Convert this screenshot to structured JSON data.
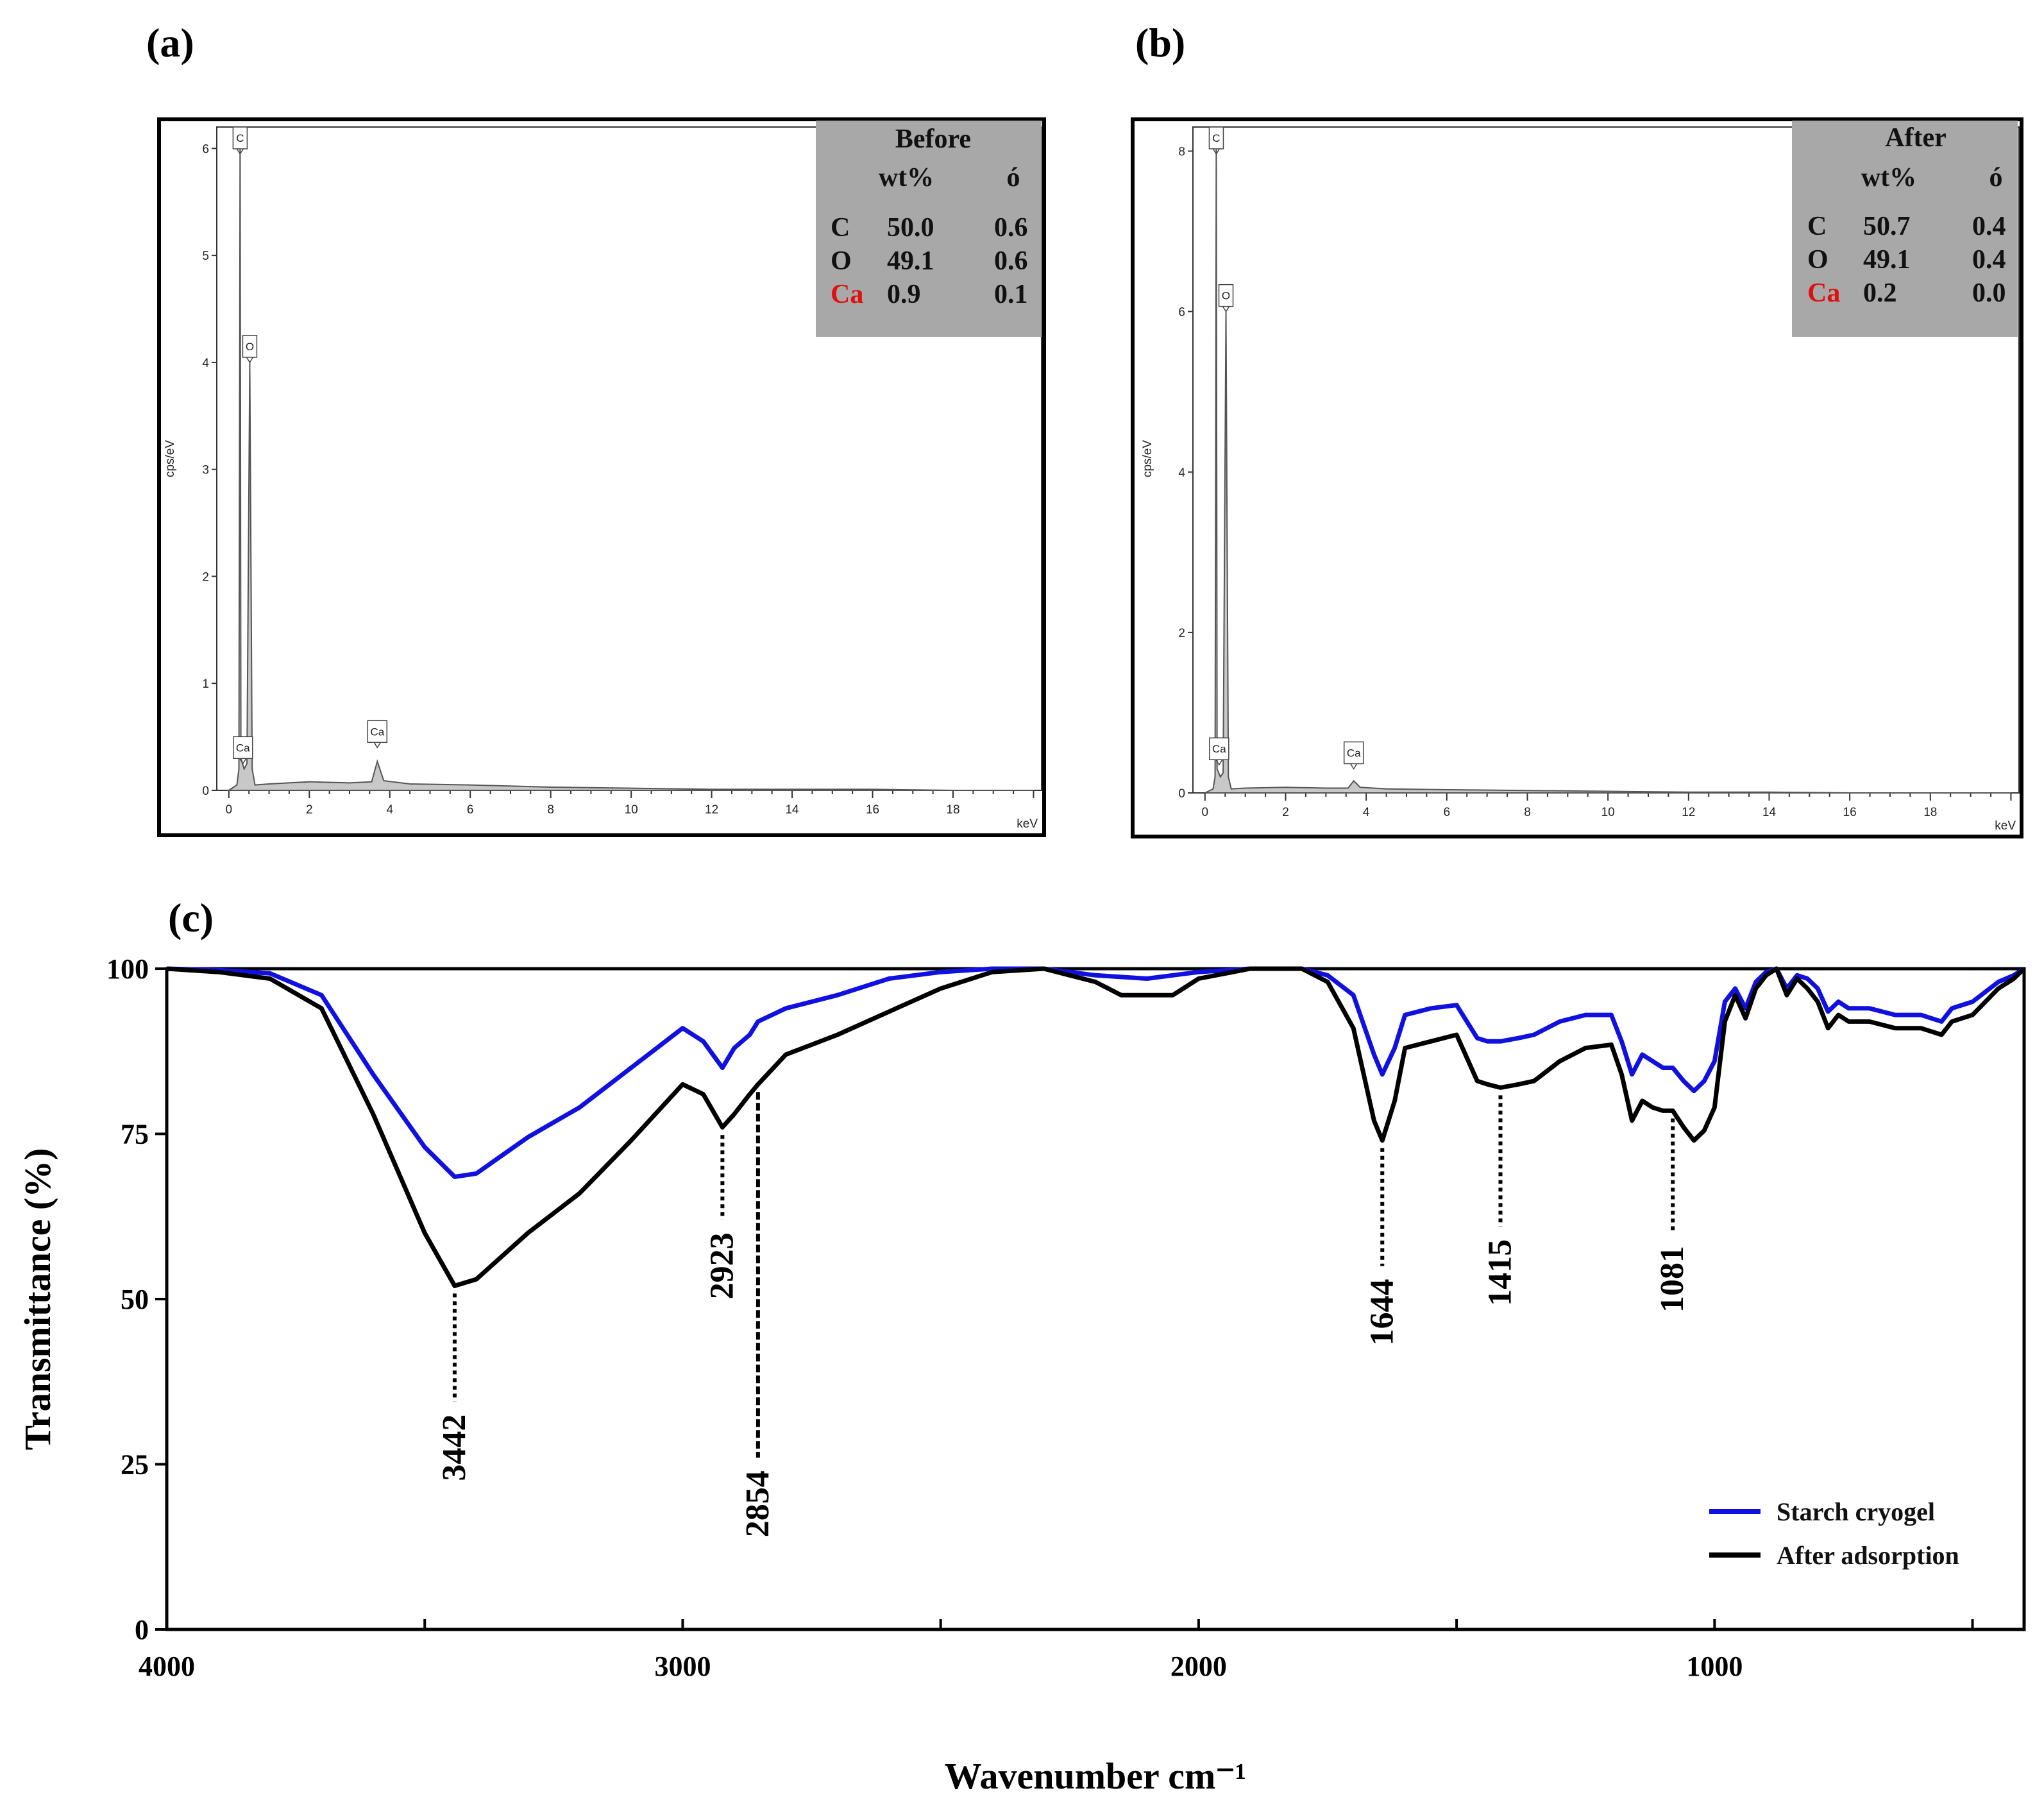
{
  "chart_data": [
    {
      "id": "a",
      "panel_label": "(a)",
      "type": "line",
      "title": "",
      "xlabel": "keV",
      "ylabel": "cps/eV",
      "xlim": [
        -0.3,
        20.2
      ],
      "ylim": [
        0,
        6.2
      ],
      "xticks": [
        0,
        2,
        4,
        6,
        8,
        10,
        12,
        14,
        16,
        18
      ],
      "yticks": [
        0,
        1,
        2,
        3,
        4,
        5,
        6
      ],
      "x_tick_labels": [
        "0",
        "2",
        "4",
        "6",
        "8",
        "10",
        "12",
        "14",
        "16",
        "18"
      ],
      "y_tick_labels": [
        "0",
        "1",
        "2",
        "3",
        "4",
        "5",
        "6"
      ],
      "spectrum": [
        [
          0,
          0
        ],
        [
          0.2,
          0.05
        ],
        [
          0.25,
          0.2
        ],
        [
          0.28,
          6.2
        ],
        [
          0.3,
          0.3
        ],
        [
          0.38,
          0.2
        ],
        [
          0.45,
          0.25
        ],
        [
          0.52,
          4.0
        ],
        [
          0.58,
          0.2
        ],
        [
          0.65,
          0.05
        ],
        [
          1.0,
          0.06
        ],
        [
          2.0,
          0.08
        ],
        [
          3.0,
          0.07
        ],
        [
          3.55,
          0.08
        ],
        [
          3.69,
          0.27
        ],
        [
          3.85,
          0.09
        ],
        [
          4.5,
          0.06
        ],
        [
          6,
          0.05
        ],
        [
          8,
          0.03
        ],
        [
          10,
          0.02
        ],
        [
          12,
          0.01
        ],
        [
          14,
          0.01
        ],
        [
          16,
          0.01
        ],
        [
          18,
          0.0
        ],
        [
          20,
          0.0
        ]
      ],
      "peaks": [
        {
          "label": "C",
          "x": 0.28,
          "y": 6.2
        },
        {
          "label": "O",
          "x": 0.52,
          "y": 4.0
        },
        {
          "label": "Ca",
          "x": 0.35,
          "y": 0.25
        },
        {
          "label": "Ca",
          "x": 3.69,
          "y": 0.4
        }
      ],
      "composition_table": {
        "title": "Before",
        "columns": [
          "wt%",
          "ó"
        ],
        "rows": [
          {
            "element": "C",
            "wt": "50.0",
            "sigma": "0.6",
            "color": "#000000"
          },
          {
            "element": "O",
            "wt": "49.1",
            "sigma": "0.6",
            "color": "#000000"
          },
          {
            "element": "Ca",
            "wt": "0.9",
            "sigma": "0.1",
            "color": "#e01010"
          }
        ]
      }
    },
    {
      "id": "b",
      "panel_label": "(b)",
      "type": "line",
      "title": "",
      "xlabel": "keV",
      "ylabel": "cps/eV",
      "xlim": [
        -0.3,
        20.2
      ],
      "ylim": [
        0,
        8.3
      ],
      "xticks": [
        0,
        2,
        4,
        6,
        8,
        10,
        12,
        14,
        16,
        18
      ],
      "yticks": [
        0,
        2,
        4,
        6,
        8
      ],
      "x_tick_labels": [
        "0",
        "2",
        "4",
        "6",
        "8",
        "10",
        "12",
        "14",
        "16",
        "18"
      ],
      "y_tick_labels": [
        "0",
        "2",
        "4",
        "6",
        "8"
      ],
      "spectrum": [
        [
          0,
          0
        ],
        [
          0.2,
          0.05
        ],
        [
          0.25,
          0.2
        ],
        [
          0.28,
          8.3
        ],
        [
          0.3,
          0.3
        ],
        [
          0.38,
          0.2
        ],
        [
          0.45,
          0.25
        ],
        [
          0.52,
          6.0
        ],
        [
          0.58,
          0.2
        ],
        [
          0.65,
          0.05
        ],
        [
          1.0,
          0.06
        ],
        [
          2.0,
          0.07
        ],
        [
          3.0,
          0.06
        ],
        [
          3.55,
          0.06
        ],
        [
          3.69,
          0.15
        ],
        [
          3.85,
          0.07
        ],
        [
          4.5,
          0.05
        ],
        [
          6,
          0.04
        ],
        [
          8,
          0.03
        ],
        [
          10,
          0.02
        ],
        [
          12,
          0.01
        ],
        [
          14,
          0.01
        ],
        [
          16,
          0.0
        ],
        [
          18,
          0.0
        ],
        [
          20,
          0.0
        ]
      ],
      "peaks": [
        {
          "label": "C",
          "x": 0.28,
          "y": 8.3
        },
        {
          "label": "O",
          "x": 0.52,
          "y": 6.0
        },
        {
          "label": "Ca",
          "x": 0.35,
          "y": 0.35
        },
        {
          "label": "Ca",
          "x": 3.69,
          "y": 0.3
        }
      ],
      "composition_table": {
        "title": "After",
        "columns": [
          "wt%",
          "ó"
        ],
        "rows": [
          {
            "element": "C",
            "wt": "50.7",
            "sigma": "0.4",
            "color": "#000000"
          },
          {
            "element": "O",
            "wt": "49.1",
            "sigma": "0.4",
            "color": "#000000"
          },
          {
            "element": "Ca",
            "wt": "0.2",
            "sigma": "0.0",
            "color": "#e01010"
          }
        ]
      }
    },
    {
      "id": "c",
      "panel_label": "(c)",
      "type": "line",
      "title": "",
      "xlabel": "Wavenumber cm⁻¹",
      "ylabel": "Transmittance (%)",
      "xlim": [
        4000,
        400
      ],
      "ylim": [
        0,
        100
      ],
      "xticks": [
        4000,
        3000,
        2000,
        1000
      ],
      "yticks": [
        0,
        25,
        50,
        75,
        100
      ],
      "x_tick_labels": [
        "4000",
        "3000",
        "2000",
        "1000"
      ],
      "y_tick_labels": [
        "0",
        "25",
        "50",
        "75",
        "100"
      ],
      "legend_position": "bottom-right",
      "series": [
        {
          "name": "Starch cryogel",
          "color": "#1010e0",
          "points": [
            [
              4000,
              100
            ],
            [
              3900,
              99.8
            ],
            [
              3800,
              99.3
            ],
            [
              3700,
              96
            ],
            [
              3600,
              84
            ],
            [
              3500,
              73
            ],
            [
              3442,
              68.5
            ],
            [
              3400,
              69
            ],
            [
              3300,
              74.5
            ],
            [
              3200,
              79
            ],
            [
              3100,
              85
            ],
            [
              3000,
              91
            ],
            [
              2960,
              89
            ],
            [
              2923,
              85
            ],
            [
              2900,
              88
            ],
            [
              2870,
              90
            ],
            [
              2854,
              92
            ],
            [
              2800,
              94
            ],
            [
              2700,
              96
            ],
            [
              2600,
              98.5
            ],
            [
              2500,
              99.5
            ],
            [
              2400,
              100
            ],
            [
              2300,
              100
            ],
            [
              2200,
              99
            ],
            [
              2100,
              98.5
            ],
            [
              2050,
              99
            ],
            [
              2000,
              99.5
            ],
            [
              1900,
              100
            ],
            [
              1800,
              100
            ],
            [
              1750,
              99
            ],
            [
              1700,
              96
            ],
            [
              1660,
              87
            ],
            [
              1644,
              84
            ],
            [
              1620,
              88
            ],
            [
              1600,
              93
            ],
            [
              1550,
              94
            ],
            [
              1500,
              94.5
            ],
            [
              1460,
              89.5
            ],
            [
              1440,
              89
            ],
            [
              1415,
              89
            ],
            [
              1380,
              89.5
            ],
            [
              1350,
              90
            ],
            [
              1300,
              92
            ],
            [
              1250,
              93
            ],
            [
              1200,
              93
            ],
            [
              1180,
              89
            ],
            [
              1160,
              84
            ],
            [
              1140,
              87
            ],
            [
              1120,
              86
            ],
            [
              1100,
              85
            ],
            [
              1081,
              85
            ],
            [
              1060,
              83
            ],
            [
              1040,
              81.5
            ],
            [
              1020,
              83
            ],
            [
              1000,
              86
            ],
            [
              980,
              95
            ],
            [
              960,
              97
            ],
            [
              940,
              94
            ],
            [
              920,
              98
            ],
            [
              900,
              99.5
            ],
            [
              880,
              100
            ],
            [
              860,
              97
            ],
            [
              840,
              99
            ],
            [
              820,
              98.5
            ],
            [
              800,
              97
            ],
            [
              780,
              93.5
            ],
            [
              760,
              95
            ],
            [
              740,
              94
            ],
            [
              700,
              94
            ],
            [
              650,
              93
            ],
            [
              600,
              93
            ],
            [
              560,
              92
            ],
            [
              540,
              94
            ],
            [
              500,
              95
            ],
            [
              450,
              98
            ],
            [
              420,
              99
            ],
            [
              400,
              100
            ]
          ]
        },
        {
          "name": "After adsorption",
          "color": "#000000",
          "points": [
            [
              4000,
              100
            ],
            [
              3900,
              99.5
            ],
            [
              3800,
              98.5
            ],
            [
              3700,
              94
            ],
            [
              3600,
              78
            ],
            [
              3500,
              60
            ],
            [
              3442,
              52
            ],
            [
              3400,
              53
            ],
            [
              3300,
              60
            ],
            [
              3200,
              66
            ],
            [
              3100,
              74
            ],
            [
              3000,
              82.5
            ],
            [
              2960,
              81
            ],
            [
              2923,
              76
            ],
            [
              2900,
              78
            ],
            [
              2870,
              81
            ],
            [
              2854,
              82.5
            ],
            [
              2800,
              87
            ],
            [
              2700,
              90
            ],
            [
              2600,
              93.5
            ],
            [
              2500,
              97
            ],
            [
              2400,
              99.5
            ],
            [
              2300,
              100
            ],
            [
              2200,
              98
            ],
            [
              2150,
              96
            ],
            [
              2050,
              96
            ],
            [
              2000,
              98.5
            ],
            [
              1900,
              100
            ],
            [
              1800,
              100
            ],
            [
              1750,
              98
            ],
            [
              1700,
              91
            ],
            [
              1660,
              77
            ],
            [
              1644,
              74
            ],
            [
              1620,
              80
            ],
            [
              1600,
              88
            ],
            [
              1550,
              89
            ],
            [
              1500,
              90
            ],
            [
              1460,
              83
            ],
            [
              1440,
              82.5
            ],
            [
              1415,
              82
            ],
            [
              1380,
              82.5
            ],
            [
              1350,
              83
            ],
            [
              1300,
              86
            ],
            [
              1250,
              88
            ],
            [
              1200,
              88.5
            ],
            [
              1180,
              84
            ],
            [
              1160,
              77
            ],
            [
              1140,
              80
            ],
            [
              1120,
              79
            ],
            [
              1100,
              78.5
            ],
            [
              1081,
              78.5
            ],
            [
              1060,
              76
            ],
            [
              1040,
              74
            ],
            [
              1020,
              75.5
            ],
            [
              1000,
              79
            ],
            [
              980,
              92
            ],
            [
              960,
              96
            ],
            [
              940,
              92.5
            ],
            [
              920,
              97
            ],
            [
              900,
              99
            ],
            [
              880,
              100
            ],
            [
              860,
              96
            ],
            [
              840,
              98.5
            ],
            [
              820,
              97
            ],
            [
              800,
              95
            ],
            [
              780,
              91
            ],
            [
              760,
              93
            ],
            [
              740,
              92
            ],
            [
              700,
              92
            ],
            [
              650,
              91
            ],
            [
              600,
              91
            ],
            [
              560,
              90
            ],
            [
              540,
              92
            ],
            [
              500,
              93
            ],
            [
              450,
              97
            ],
            [
              420,
              98.5
            ],
            [
              400,
              100
            ]
          ]
        }
      ],
      "annotations": [
        {
          "label": "3442",
          "x": 3442,
          "marker_y": 52,
          "style": "dotted"
        },
        {
          "label": "2923",
          "x": 2923,
          "marker_y": 76,
          "style": "dotted"
        },
        {
          "label": "2854",
          "x": 2854,
          "marker_y": 82.5,
          "style": "dashed"
        },
        {
          "label": "1644",
          "x": 1644,
          "marker_y": 74,
          "style": "dotted"
        },
        {
          "label": "1415",
          "x": 1415,
          "marker_y": 82,
          "style": "dotted"
        },
        {
          "label": "1081",
          "x": 1081,
          "marker_y": 78.5,
          "style": "dotted"
        }
      ]
    }
  ]
}
